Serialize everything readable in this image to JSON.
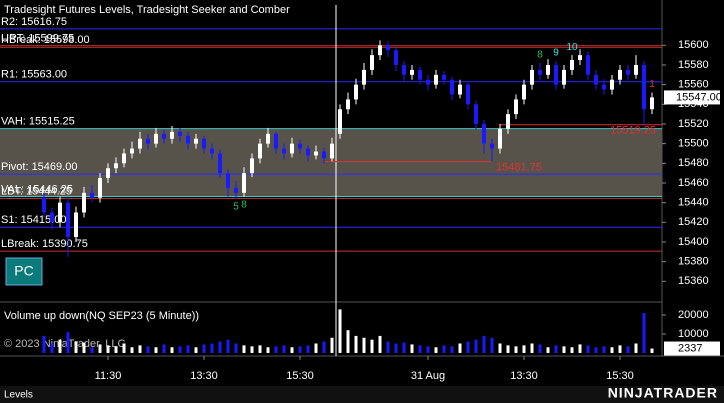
{
  "chart_data": [
    {
      "type": "candlestick",
      "title": "Tradesight Futures Levels, Tradesight Seeker and Comber",
      "categories": [
        null,
        null,
        null,
        null,
        null,
        null,
        null,
        null,
        "11:30",
        null,
        null,
        null,
        null,
        null,
        null,
        null,
        null,
        null,
        null,
        null,
        "13:30",
        null,
        null,
        null,
        null,
        null,
        null,
        null,
        null,
        null,
        null,
        null,
        "15:30",
        null,
        null,
        null,
        null,
        null,
        null,
        null,
        null,
        null,
        null,
        null,
        null,
        null,
        null,
        null,
        "31 Aug",
        null,
        null,
        null,
        null,
        null,
        null,
        null,
        null,
        null,
        null,
        null,
        "13:30",
        null,
        null,
        null,
        null,
        null,
        null,
        null,
        null,
        null,
        null,
        null,
        "15:30",
        null,
        null,
        null,
        null
      ],
      "open": [
        15445,
        15430,
        15420,
        15440,
        15405,
        15430,
        15450,
        15445,
        15465,
        15475,
        15480,
        15490,
        15495,
        15505,
        15500,
        15510,
        15505,
        15512,
        15508,
        15500,
        15505,
        15495,
        15490,
        15470,
        15455,
        15450,
        15470,
        15485,
        15500,
        15510,
        15495,
        15490,
        15500,
        15495,
        15488,
        15492,
        15485,
        15510,
        15535,
        15545,
        15560,
        15575,
        15590,
        15600,
        15595,
        15580,
        15570,
        15575,
        15565,
        15560,
        15570,
        15565,
        15550,
        15560,
        15540,
        15520,
        15500,
        15495,
        15515,
        15530,
        15545,
        15560,
        15575,
        15570,
        15580,
        15560,
        15575,
        15585,
        15590,
        15570,
        15560,
        15555,
        15565,
        15575,
        15570,
        15580,
        15535
      ],
      "high": [
        15450,
        15435,
        15446,
        15445,
        15436,
        15456,
        15458,
        15470,
        15480,
        15486,
        15495,
        15502,
        15512,
        15510,
        15516,
        15514,
        15518,
        15516,
        15512,
        15510,
        15508,
        15500,
        15494,
        15474,
        15462,
        15476,
        15490,
        15505,
        15516,
        15512,
        15500,
        15506,
        15504,
        15498,
        15498,
        15496,
        15506,
        15540,
        15552,
        15566,
        15582,
        15596,
        15605,
        15604,
        15598,
        15584,
        15580,
        15578,
        15570,
        15575,
        15574,
        15568,
        15565,
        15562,
        15544,
        15524,
        15505,
        15520,
        15535,
        15550,
        15565,
        15580,
        15582,
        15586,
        15584,
        15580,
        15590,
        15596,
        15594,
        15575,
        15566,
        15570,
        15580,
        15580,
        15590,
        15584,
        15552
      ],
      "low": [
        15425,
        15412,
        15415,
        15385,
        15400,
        15425,
        15440,
        15440,
        15460,
        15470,
        15476,
        15485,
        15490,
        15494,
        15496,
        15500,
        15500,
        15502,
        15494,
        15495,
        15490,
        15484,
        15465,
        15446,
        15444,
        15446,
        15466,
        15480,
        15496,
        15490,
        15484,
        15486,
        15490,
        15482,
        15484,
        15480,
        15482,
        15505,
        15530,
        15540,
        15555,
        15570,
        15585,
        15588,
        15574,
        15564,
        15565,
        15560,
        15554,
        15556,
        15560,
        15544,
        15546,
        15535,
        15514,
        15490,
        15481.75,
        15490,
        15510,
        15525,
        15540,
        15555,
        15565,
        15566,
        15555,
        15556,
        15570,
        15580,
        15565,
        15555,
        15550,
        15550,
        15560,
        15565,
        15566,
        15519.25,
        15530
      ],
      "close": [
        15430,
        15420,
        15440,
        15405,
        15430,
        15450,
        15445,
        15465,
        15475,
        15480,
        15490,
        15495,
        15505,
        15500,
        15510,
        15505,
        15512,
        15508,
        15500,
        15505,
        15495,
        15490,
        15470,
        15455,
        15450,
        15470,
        15485,
        15500,
        15510,
        15495,
        15490,
        15500,
        15495,
        15488,
        15492,
        15485,
        15500,
        15535,
        15545,
        15560,
        15575,
        15590,
        15600,
        15595,
        15580,
        15570,
        15575,
        15565,
        15560,
        15570,
        15565,
        15550,
        15560,
        15540,
        15520,
        15500,
        15495,
        15515,
        15530,
        15545,
        15560,
        15575,
        15570,
        15580,
        15560,
        15575,
        15585,
        15590,
        15570,
        15560,
        15555,
        15565,
        15575,
        15570,
        15580,
        15535,
        15547
      ],
      "up_color": "#ffffff",
      "down_color": "#1a1aff",
      "ylim": [
        15341,
        15641
      ],
      "yticks": [
        15360,
        15380,
        15400,
        15420,
        15440,
        15460,
        15480,
        15500,
        15520,
        15540,
        15560,
        15580,
        15600
      ],
      "session_break_before": 37,
      "levels": [
        {
          "label": "R2: 15616.75",
          "value": 15616.75,
          "color": "#2a2aff"
        },
        {
          "label": "URT: 15599.75",
          "value": 15599.75,
          "color": "#b03030"
        },
        {
          "label": "HBreak: 15598.00",
          "value": 15598.0,
          "color": "#d03030"
        },
        {
          "label": "R1: 15563.00",
          "value": 15563.0,
          "color": "#2a2aff"
        },
        {
          "label": "VAH: 15515.25",
          "value": 15515.25,
          "color": "#40c8c8"
        },
        {
          "label": "Pivot: 15469.00",
          "value": 15469.0,
          "color": "#2a2aff"
        },
        {
          "label": "VAL: 15446.25",
          "value": 15446.25,
          "color": "#40c8c8"
        },
        {
          "label": "LBT: 15444.25",
          "value": 15444.25,
          "color": "#b03030"
        },
        {
          "label": "S1: 15415.00",
          "value": 15415.0,
          "color": "#2a2aff"
        },
        {
          "label": "LBreak: 15390.75",
          "value": 15390.75,
          "color": "#d03030"
        }
      ],
      "value_area_color": "#57534b",
      "annotations": [
        {
          "label": "15481.75",
          "value": 15481.75,
          "from": 35,
          "to": 56,
          "color": "#e03030"
        },
        {
          "label": "15519.25",
          "value": 15519.25,
          "from": 57,
          "to": 76,
          "color": "#e03030"
        }
      ],
      "counts": [
        {
          "count": 1,
          "bar": 76,
          "position": "above",
          "color": "#e03030"
        },
        {
          "count": 10,
          "bar": 66,
          "position": "above",
          "color": "#40e0e0"
        },
        {
          "count": 9,
          "bar": 64,
          "position": "above",
          "color": "#40e0e0"
        },
        {
          "count": 8,
          "bar": 62,
          "position": "above",
          "color": "#30c060"
        },
        {
          "count": 5,
          "bar": 24,
          "position": "below",
          "color": "#30c060"
        },
        {
          "count": 8,
          "bar": 25,
          "position": "below",
          "color": "#30c060"
        }
      ],
      "last_price": {
        "value": 15547,
        "label": "15547.00"
      }
    },
    {
      "type": "volume",
      "title": "Volume up down(NQ SEP23 (5 Minute))",
      "values": [
        9000,
        5000,
        7000,
        11000,
        6000,
        5500,
        3000,
        4500,
        4000,
        3500,
        5000,
        3000,
        4000,
        3500,
        3000,
        4500,
        3000,
        3500,
        4000,
        3000,
        4500,
        5000,
        6000,
        7000,
        5000,
        4000,
        3500,
        4000,
        3000,
        3500,
        4000,
        3000,
        3500,
        4000,
        5000,
        6000,
        8000,
        23000,
        12000,
        9000,
        8000,
        7000,
        9000,
        6000,
        5000,
        5500,
        4500,
        4000,
        3500,
        3000,
        4000,
        3500,
        5000,
        6000,
        7000,
        9000,
        8000,
        5000,
        4000,
        3500,
        4000,
        5000,
        4500,
        3000,
        4000,
        3500,
        3000,
        4500,
        4000,
        3000,
        3500,
        3000,
        4000,
        3500,
        5000,
        21000,
        2337
      ],
      "up_color": "#ffffff",
      "down_color": "#1a1aff",
      "ylim": [
        -1600,
        25300
      ],
      "yticks": [
        10000,
        20000
      ]
    }
  ],
  "copyright": "© 2023 NinjaTrader, LLC",
  "button": "PC",
  "tab": "Levels",
  "brand": "NINJATRADER"
}
